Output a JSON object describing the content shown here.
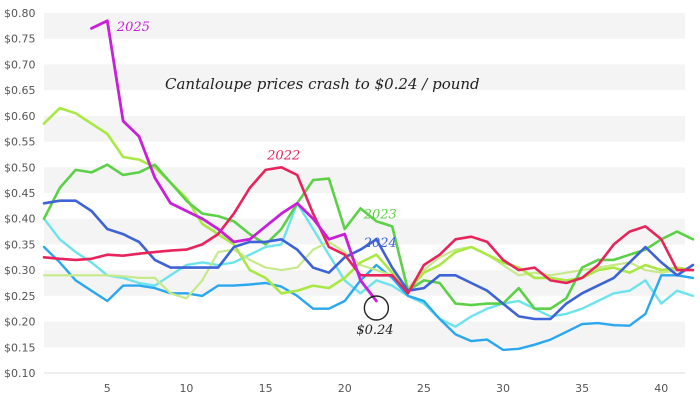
{
  "chart_data": {
    "type": "line",
    "title": "",
    "xlabel": "",
    "ylabel": "",
    "xlim": [
      1,
      41.5
    ],
    "ylim": [
      0.1,
      0.8
    ],
    "grid": "horizontal bands",
    "x_ticks": [
      5,
      10,
      15,
      20,
      25,
      30,
      35,
      40
    ],
    "y_ticks": [
      "$0.10",
      "$0.15",
      "$0.20",
      "$0.25",
      "$0.30",
      "$0.35",
      "$0.40",
      "$0.45",
      "$0.50",
      "$0.55",
      "$0.60",
      "$0.65",
      "$0.70",
      "$0.75",
      "$0.80"
    ],
    "y_tick_values": [
      0.1,
      0.15,
      0.2,
      0.25,
      0.3,
      0.35,
      0.4,
      0.45,
      0.5,
      0.55,
      0.6,
      0.65,
      0.7,
      0.75,
      0.8
    ],
    "headline": "Cantaloupe prices crash to $0.24 / pound",
    "callout_label": "$0.24",
    "callout_point": [
      22,
      0.24
    ],
    "series": [
      {
        "name": "2025",
        "color": "#c81fd8",
        "width": 2.8,
        "x": [
          4,
          5,
          6,
          7,
          8,
          9,
          10,
          11,
          12,
          13,
          14,
          15,
          16,
          17,
          18,
          19,
          20,
          21,
          22
        ],
        "y": [
          0.77,
          0.785,
          0.59,
          0.56,
          0.48,
          0.43,
          0.415,
          0.4,
          0.38,
          0.355,
          0.36,
          0.385,
          0.41,
          0.43,
          0.4,
          0.36,
          0.37,
          0.28,
          0.24
        ],
        "label_at": [
          5.6,
          0.765
        ]
      },
      {
        "name": "2022",
        "color": "#e8245c",
        "width": 2.6,
        "x": [
          1,
          2,
          3,
          4,
          5,
          6,
          7,
          8,
          9,
          10,
          11,
          12,
          13,
          14,
          15,
          16,
          17,
          18,
          19,
          20,
          21,
          22,
          23,
          24,
          25,
          26,
          27,
          28,
          29,
          30,
          31,
          32,
          33,
          34,
          35,
          36,
          37,
          38,
          39,
          40,
          41,
          42
        ],
        "y": [
          0.325,
          0.322,
          0.32,
          0.322,
          0.33,
          0.328,
          0.332,
          0.335,
          0.338,
          0.34,
          0.35,
          0.37,
          0.41,
          0.46,
          0.495,
          0.5,
          0.485,
          0.41,
          0.345,
          0.33,
          0.29,
          0.29,
          0.29,
          0.255,
          0.31,
          0.33,
          0.36,
          0.365,
          0.355,
          0.32,
          0.3,
          0.305,
          0.28,
          0.275,
          0.285,
          0.31,
          0.35,
          0.375,
          0.385,
          0.36,
          0.3,
          0.3
        ],
        "label_at": [
          15.1,
          0.515
        ]
      },
      {
        "name": "2023",
        "color": "#5cd047",
        "width": 2.6,
        "x": [
          1,
          2,
          3,
          4,
          5,
          6,
          7,
          8,
          9,
          10,
          11,
          12,
          13,
          14,
          15,
          16,
          17,
          18,
          19,
          20,
          21,
          22,
          23,
          24,
          25,
          26,
          27,
          28,
          29,
          30,
          31,
          32,
          33,
          34,
          35,
          36,
          37,
          38,
          39,
          40,
          41,
          42
        ],
        "y": [
          0.4,
          0.46,
          0.495,
          0.49,
          0.505,
          0.485,
          0.49,
          0.505,
          0.47,
          0.435,
          0.41,
          0.405,
          0.395,
          0.37,
          0.35,
          0.38,
          0.43,
          0.475,
          0.478,
          0.38,
          0.42,
          0.395,
          0.385,
          0.26,
          0.28,
          0.275,
          0.235,
          0.232,
          0.235,
          0.235,
          0.265,
          0.225,
          0.225,
          0.245,
          0.305,
          0.32,
          0.32,
          0.33,
          0.34,
          0.36,
          0.375,
          0.36
        ],
        "label_at": [
          21.2,
          0.4
        ]
      },
      {
        "name": "2024",
        "color": "#3d63d6",
        "width": 2.6,
        "x": [
          1,
          2,
          3,
          4,
          5,
          6,
          7,
          8,
          9,
          10,
          11,
          12,
          13,
          14,
          15,
          16,
          17,
          18,
          19,
          20,
          21,
          22,
          23,
          24,
          25,
          26,
          27,
          28,
          29,
          30,
          31,
          32,
          33,
          34,
          35,
          36,
          37,
          38,
          39,
          40,
          41,
          42
        ],
        "y": [
          0.43,
          0.435,
          0.435,
          0.415,
          0.38,
          0.37,
          0.355,
          0.32,
          0.305,
          0.305,
          0.305,
          0.305,
          0.345,
          0.355,
          0.355,
          0.36,
          0.34,
          0.305,
          0.295,
          0.325,
          0.34,
          0.36,
          0.305,
          0.26,
          0.265,
          0.29,
          0.29,
          0.275,
          0.26,
          0.235,
          0.21,
          0.205,
          0.205,
          0.235,
          0.255,
          0.27,
          0.285,
          0.315,
          0.345,
          0.315,
          0.29,
          0.31
        ],
        "label_at": [
          21.2,
          0.345
        ]
      },
      {
        "name": "",
        "color": "#a9e845",
        "width": 2.6,
        "x": [
          1,
          2,
          3,
          4,
          5,
          6,
          7,
          8,
          9,
          10,
          11,
          12,
          13,
          14,
          15,
          16,
          17,
          18,
          19,
          20,
          21,
          22,
          23,
          24,
          25,
          26,
          27,
          28,
          29,
          30,
          31,
          32,
          33,
          34,
          35,
          36,
          37,
          38,
          39,
          40,
          41,
          42
        ],
        "y": [
          0.585,
          0.615,
          0.605,
          0.585,
          0.565,
          0.52,
          0.515,
          0.5,
          0.47,
          0.44,
          0.39,
          0.37,
          0.35,
          0.3,
          0.285,
          0.255,
          0.26,
          0.27,
          0.265,
          0.285,
          0.315,
          0.33,
          0.295,
          0.26,
          0.295,
          0.31,
          0.335,
          0.345,
          0.33,
          0.315,
          0.305,
          0.285,
          0.285,
          0.28,
          0.285,
          0.3,
          0.305,
          0.295,
          0.31,
          0.3,
          0.305,
          0.3
        ]
      },
      {
        "name": "",
        "color": "#c6ea8a",
        "width": 2.2,
        "x": [
          1,
          2,
          3,
          4,
          5,
          6,
          7,
          8,
          9,
          10,
          11,
          12,
          13,
          14,
          15,
          16,
          17,
          18,
          19,
          20,
          21,
          22,
          23,
          24,
          25,
          26,
          27,
          28,
          29,
          30,
          31,
          32,
          33,
          34,
          35,
          36,
          37,
          38,
          39,
          40,
          41,
          42
        ],
        "y": [
          0.29,
          0.29,
          0.29,
          0.29,
          0.29,
          0.288,
          0.285,
          0.285,
          0.255,
          0.245,
          0.28,
          0.335,
          0.34,
          0.32,
          0.305,
          0.3,
          0.305,
          0.34,
          0.355,
          0.335,
          0.31,
          0.3,
          0.29,
          0.265,
          0.3,
          0.325,
          0.34,
          0.345,
          0.33,
          0.31,
          0.29,
          0.295,
          0.29,
          0.295,
          0.3,
          0.305,
          0.31,
          0.315,
          0.3,
          0.295,
          0.3,
          0.3
        ]
      },
      {
        "name": "",
        "color": "#2aa7ef",
        "width": 2.4,
        "x": [
          1,
          2,
          3,
          4,
          5,
          6,
          7,
          8,
          9,
          10,
          11,
          12,
          13,
          14,
          15,
          16,
          17,
          18,
          19,
          20,
          21,
          22,
          23,
          24,
          25,
          26,
          27,
          28,
          29,
          30,
          31,
          32,
          33,
          34,
          35,
          36,
          37,
          38,
          39,
          40,
          41,
          42
        ],
        "y": [
          0.345,
          0.315,
          0.28,
          0.26,
          0.24,
          0.27,
          0.27,
          0.265,
          0.255,
          0.255,
          0.25,
          0.27,
          0.27,
          0.272,
          0.275,
          0.268,
          0.25,
          0.225,
          0.225,
          0.24,
          0.28,
          0.31,
          0.285,
          0.25,
          0.24,
          0.205,
          0.175,
          0.162,
          0.165,
          0.145,
          0.147,
          0.155,
          0.165,
          0.18,
          0.195,
          0.197,
          0.193,
          0.192,
          0.215,
          0.29,
          0.29,
          0.285
        ]
      },
      {
        "name": "",
        "color": "#6de3ec",
        "width": 2.4,
        "x": [
          1,
          2,
          3,
          4,
          5,
          6,
          7,
          8,
          9,
          10,
          11,
          12,
          13,
          14,
          15,
          16,
          17,
          18,
          19,
          20,
          21,
          22,
          23,
          24,
          25,
          26,
          27,
          28,
          29,
          30,
          31,
          32,
          33,
          34,
          35,
          36,
          37,
          38,
          39,
          40,
          41,
          42
        ],
        "y": [
          0.4,
          0.36,
          0.335,
          0.315,
          0.29,
          0.285,
          0.275,
          0.27,
          0.29,
          0.31,
          0.315,
          0.31,
          0.315,
          0.33,
          0.345,
          0.35,
          0.43,
          0.38,
          0.33,
          0.28,
          0.255,
          0.28,
          0.27,
          0.25,
          0.235,
          0.205,
          0.19,
          0.21,
          0.225,
          0.235,
          0.24,
          0.225,
          0.21,
          0.215,
          0.225,
          0.24,
          0.255,
          0.26,
          0.28,
          0.235,
          0.26,
          0.25
        ]
      }
    ]
  }
}
